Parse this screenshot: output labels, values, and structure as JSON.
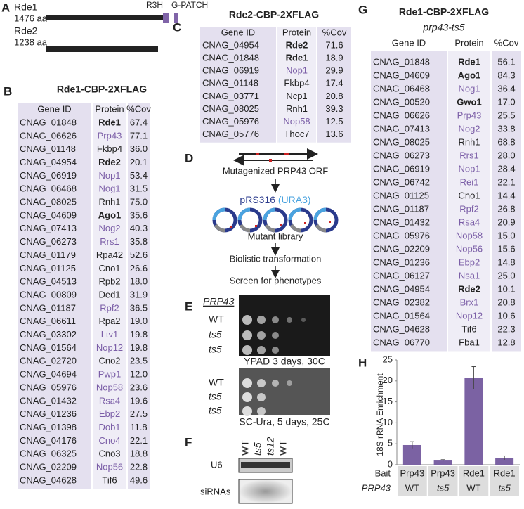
{
  "panel_labels": [
    "A",
    "B",
    "C",
    "D",
    "E",
    "F",
    "G",
    "H"
  ],
  "panel_a": {
    "proteins": [
      {
        "name": "Rde1",
        "length": "1476 aa"
      },
      {
        "name": "Rde2",
        "length": "1238 aa"
      }
    ],
    "domains": [
      "R3H",
      "G-PATCH"
    ]
  },
  "panel_b": {
    "title": "Rde1-CBP-2XFLAG",
    "columns": [
      "Gene ID",
      "Protein",
      "%Cov"
    ],
    "rows": [
      {
        "gene": "CNAG_01848",
        "protein": "Rde1",
        "cov": "67.4",
        "bold": true
      },
      {
        "gene": "CNAG_06626",
        "protein": "Prp43",
        "cov": "77.1",
        "color": "#7b5ea7"
      },
      {
        "gene": "CNAG_01148",
        "protein": "Fkbp4",
        "cov": "36.0"
      },
      {
        "gene": "CNAG_04954",
        "protein": "Rde2",
        "cov": "20.1",
        "bold": true
      },
      {
        "gene": "CNAG_06919",
        "protein": "Nop1",
        "cov": "53.4",
        "color": "#7b5ea7"
      },
      {
        "gene": "CNAG_06468",
        "protein": "Nog1",
        "cov": "31.5",
        "color": "#7b5ea7"
      },
      {
        "gene": "CNAG_08025",
        "protein": "Rnh1",
        "cov": "75.0"
      },
      {
        "gene": "CNAG_04609",
        "protein": "Ago1",
        "cov": "35.6",
        "bold": true
      },
      {
        "gene": "CNAG_07413",
        "protein": "Nog2",
        "cov": "40.3",
        "color": "#7b5ea7"
      },
      {
        "gene": "CNAG_06273",
        "protein": "Rrs1",
        "cov": "35.8",
        "color": "#7b5ea7"
      },
      {
        "gene": "CNAG_01179",
        "protein": "Rpa42",
        "cov": "52.6"
      },
      {
        "gene": "CNAG_01125",
        "protein": "Cno1",
        "cov": "26.6"
      },
      {
        "gene": "CNAG_04513",
        "protein": "Rpb2",
        "cov": "18.0"
      },
      {
        "gene": "CNAG_00809",
        "protein": "Ded1",
        "cov": "31.9"
      },
      {
        "gene": "CNAG_01187",
        "protein": "Rpf2",
        "cov": "36.5",
        "color": "#7b5ea7"
      },
      {
        "gene": "CNAG_06611",
        "protein": "Rpa2",
        "cov": "19.0"
      },
      {
        "gene": "CNAG_03302",
        "protein": "Ltv1",
        "cov": "19.8",
        "color": "#7b5ea7"
      },
      {
        "gene": "CNAG_01564",
        "protein": "Nop12",
        "cov": "19.8",
        "color": "#7b5ea7"
      },
      {
        "gene": "CNAG_02720",
        "protein": "Cno2",
        "cov": "23.5"
      },
      {
        "gene": "CNAG_04694",
        "protein": "Pwp1",
        "cov": "12.0",
        "color": "#7b5ea7"
      },
      {
        "gene": "CNAG_05976",
        "protein": "Nop58",
        "cov": "23.6",
        "color": "#7b5ea7"
      },
      {
        "gene": "CNAG_01432",
        "protein": "Rsa4",
        "cov": "19.6",
        "color": "#7b5ea7"
      },
      {
        "gene": "CNAG_01236",
        "protein": "Ebp2",
        "cov": "27.5",
        "color": "#7b5ea7"
      },
      {
        "gene": "CNAG_01398",
        "protein": "Dob1",
        "cov": "11.8",
        "color": "#7b5ea7"
      },
      {
        "gene": "CNAG_04176",
        "protein": "Cno4",
        "cov": "22.1",
        "color": "#7b5ea7"
      },
      {
        "gene": "CNAG_06325",
        "protein": "Cno3",
        "cov": "18.8"
      },
      {
        "gene": "CNAG_02209",
        "protein": "Nop56",
        "cov": "22.8",
        "color": "#7b5ea7"
      },
      {
        "gene": "CNAG_04628",
        "protein": "Tif6",
        "cov": "49.6"
      }
    ]
  },
  "panel_c": {
    "title": "Rde2-CBP-2XFLAG",
    "columns": [
      "Gene ID",
      "Protein",
      "%Cov"
    ],
    "rows": [
      {
        "gene": "CNAG_04954",
        "protein": "Rde2",
        "cov": "71.6",
        "bold": true
      },
      {
        "gene": "CNAG_01848",
        "protein": "Rde1",
        "cov": "18.9",
        "bold": true
      },
      {
        "gene": "CNAG_06919",
        "protein": "Nop1",
        "cov": "29.9",
        "color": "#7b5ea7"
      },
      {
        "gene": "CNAG_01148",
        "protein": "Fkbp4",
        "cov": "17.4"
      },
      {
        "gene": "CNAG_03771",
        "protein": "Ncp1",
        "cov": "20.8"
      },
      {
        "gene": "CNAG_08025",
        "protein": "Rnh1",
        "cov": "39.3"
      },
      {
        "gene": "CNAG_05976",
        "protein": "Nop58",
        "cov": "12.5",
        "color": "#7b5ea7"
      },
      {
        "gene": "CNAG_05776",
        "protein": "Thoc7",
        "cov": "13.6"
      }
    ]
  },
  "panel_d": {
    "steps": [
      "Mutagenized PRP43 ORF",
      "Mutant library",
      "Biolistic transformation",
      "Screen for phenotypes"
    ],
    "plasmid": "pRS316",
    "marker": "(URA3)"
  },
  "panel_e": {
    "gene": "PRP43",
    "plates": [
      {
        "strains": [
          "WT",
          "ts5",
          "ts5"
        ],
        "caption": "YPAD 3 days, 30C"
      },
      {
        "strains": [
          "WT",
          "ts5",
          "ts5"
        ],
        "caption": "SC-Ura, 5 days, 25C"
      }
    ]
  },
  "panel_f": {
    "lanes": [
      "WT",
      "ts5",
      "ts12",
      "WT"
    ],
    "blots": [
      "U6",
      "siRNAs"
    ]
  },
  "panel_g": {
    "title": "Rde1-CBP-2XFLAG",
    "subtitle": "prp43-ts5",
    "columns": [
      "Gene ID",
      "Protein",
      "%Cov"
    ],
    "rows": [
      {
        "gene": "CNAG_01848",
        "protein": "Rde1",
        "cov": "56.1",
        "bold": true
      },
      {
        "gene": "CNAG_04609",
        "protein": "Ago1",
        "cov": "84.3",
        "bold": true
      },
      {
        "gene": "CNAG_06468",
        "protein": "Nog1",
        "cov": "36.4",
        "color": "#7b5ea7"
      },
      {
        "gene": "CNAG_00520",
        "protein": "Gwo1",
        "cov": "17.0",
        "bold": true
      },
      {
        "gene": "CNAG_06626",
        "protein": "Prp43",
        "cov": "25.5",
        "color": "#7b5ea7"
      },
      {
        "gene": "CNAG_07413",
        "protein": "Nog2",
        "cov": "33.8",
        "color": "#7b5ea7"
      },
      {
        "gene": "CNAG_08025",
        "protein": "Rnh1",
        "cov": "68.8"
      },
      {
        "gene": "CNAG_06273",
        "protein": "Rrs1",
        "cov": "28.0",
        "color": "#7b5ea7"
      },
      {
        "gene": "CNAG_06919",
        "protein": "Nop1",
        "cov": "28.4",
        "color": "#7b5ea7"
      },
      {
        "gene": "CNAG_06742",
        "protein": "Rei1",
        "cov": "22.1",
        "color": "#7b5ea7"
      },
      {
        "gene": "CNAG_01125",
        "protein": "Cno1",
        "cov": "14.4"
      },
      {
        "gene": "CNAG_01187",
        "protein": "Rpf2",
        "cov": "26.8",
        "color": "#7b5ea7"
      },
      {
        "gene": "CNAG_01432",
        "protein": "Rsa4",
        "cov": "20.9",
        "color": "#7b5ea7"
      },
      {
        "gene": "CNAG_05976",
        "protein": "Nop58",
        "cov": "15.0",
        "color": "#7b5ea7"
      },
      {
        "gene": "CNAG_02209",
        "protein": "Nop56",
        "cov": "15.6",
        "color": "#7b5ea7"
      },
      {
        "gene": "CNAG_01236",
        "protein": "Ebp2",
        "cov": "14.8",
        "color": "#7b5ea7"
      },
      {
        "gene": "CNAG_06127",
        "protein": "Nsa1",
        "cov": "25.0",
        "color": "#7b5ea7"
      },
      {
        "gene": "CNAG_04954",
        "protein": "Rde2",
        "cov": "10.1",
        "bold": true
      },
      {
        "gene": "CNAG_02382",
        "protein": "Brx1",
        "cov": "20.8",
        "color": "#7b5ea7"
      },
      {
        "gene": "CNAG_01564",
        "protein": "Nop12",
        "cov": "10.6",
        "color": "#7b5ea7"
      },
      {
        "gene": "CNAG_04628",
        "protein": "Tif6",
        "cov": "22.3"
      },
      {
        "gene": "CNAG_06770",
        "protein": "Fba1",
        "cov": "12.8"
      }
    ]
  },
  "panel_h": {
    "type": "bar",
    "ylabel": "18S rRNA Enrichment",
    "ylim": [
      0,
      25
    ],
    "yticks": [
      0,
      5,
      10,
      15,
      20,
      25
    ],
    "values": [
      4.7,
      1.0,
      20.7,
      1.6
    ],
    "errors": [
      0.8,
      0.2,
      2.7,
      0.5
    ],
    "color": "#7b62a3",
    "row_labels": [
      "Bait",
      "PRP43"
    ],
    "bait": [
      "Prp43",
      "Prp43",
      "Rde1",
      "Rde1"
    ],
    "strain": [
      "WT",
      "ts5",
      "WT",
      "ts5"
    ]
  }
}
